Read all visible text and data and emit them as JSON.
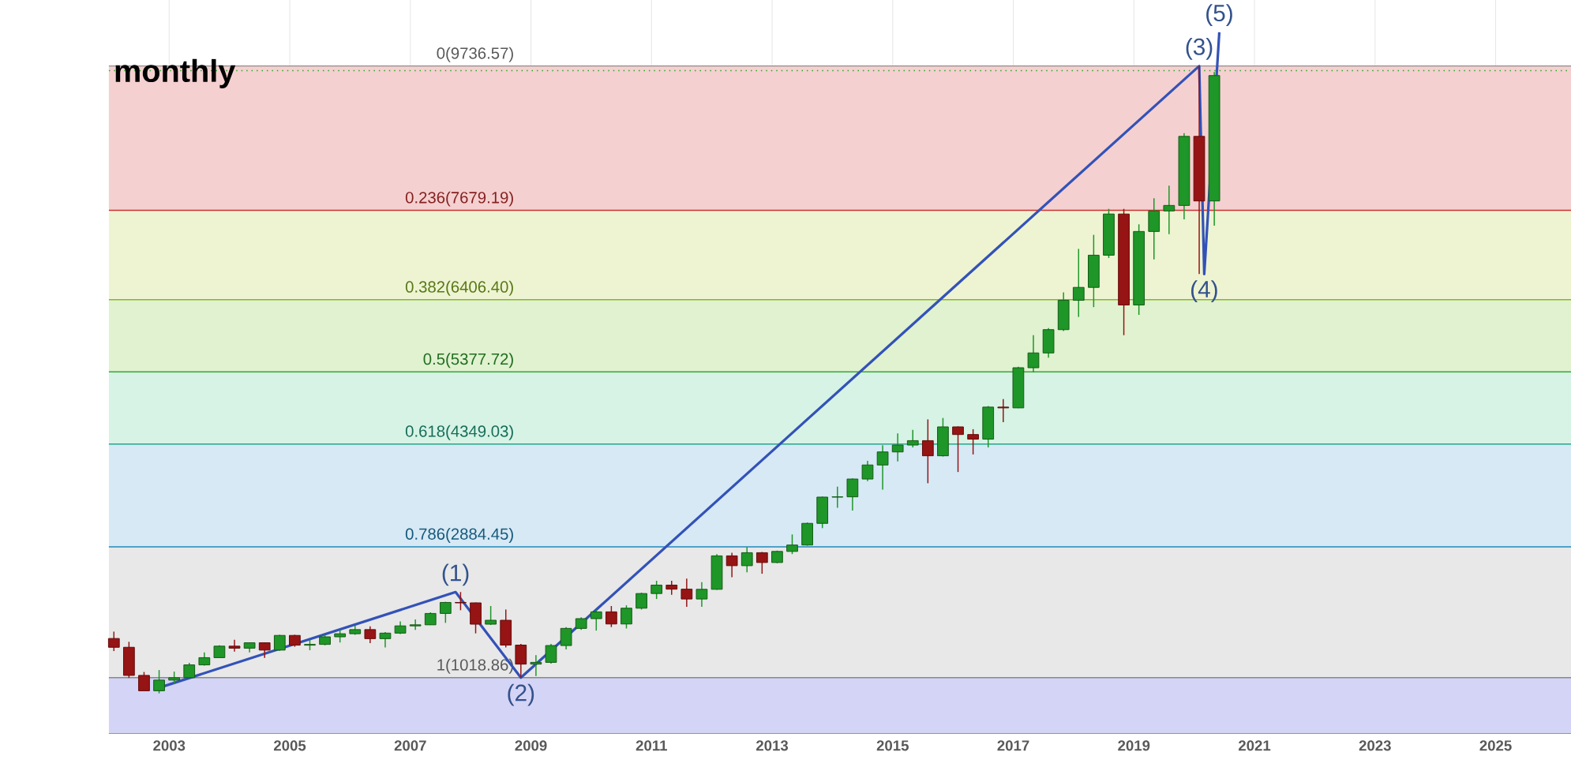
{
  "chart_data": {
    "type": "candlestick",
    "title": "monthly",
    "x": [
      "2002-02",
      "2002-05",
      "2002-08",
      "2002-11",
      "2003-02",
      "2003-05",
      "2003-08",
      "2003-11",
      "2004-02",
      "2004-05",
      "2004-08",
      "2004-11",
      "2005-02",
      "2005-05",
      "2005-08",
      "2005-11",
      "2006-02",
      "2006-05",
      "2006-08",
      "2006-11",
      "2007-02",
      "2007-05",
      "2007-08",
      "2007-11",
      "2008-02",
      "2008-05",
      "2008-08",
      "2008-11",
      "2009-02",
      "2009-05",
      "2009-08",
      "2009-11",
      "2010-02",
      "2010-05",
      "2010-08",
      "2010-11",
      "2011-02",
      "2011-05",
      "2011-08",
      "2011-11",
      "2012-02",
      "2012-05",
      "2012-08",
      "2012-11",
      "2013-02",
      "2013-05",
      "2013-08",
      "2013-11",
      "2014-02",
      "2014-05",
      "2014-08",
      "2014-11",
      "2015-02",
      "2015-05",
      "2015-08",
      "2015-11",
      "2016-02",
      "2016-05",
      "2016-08",
      "2016-11",
      "2017-02",
      "2017-05",
      "2017-08",
      "2017-11",
      "2018-02",
      "2018-05",
      "2018-08",
      "2018-11",
      "2019-02",
      "2019-05",
      "2019-08",
      "2019-11",
      "2020-02",
      "2020-05"
    ],
    "ohlc": [
      [
        1577,
        1675,
        1398,
        1452
      ],
      [
        1452,
        1530,
        1015,
        1051
      ],
      [
        1051,
        1100,
        832,
        832
      ],
      [
        832,
        1127,
        795,
        984
      ],
      [
        984,
        1105,
        930,
        1018
      ],
      [
        1018,
        1230,
        1010,
        1201
      ],
      [
        1201,
        1380,
        1190,
        1304
      ],
      [
        1304,
        1480,
        1300,
        1468
      ],
      [
        1468,
        1560,
        1390,
        1439
      ],
      [
        1439,
        1520,
        1380,
        1516
      ],
      [
        1516,
        1520,
        1300,
        1412
      ],
      [
        1412,
        1630,
        1400,
        1621
      ],
      [
        1621,
        1630,
        1460,
        1482
      ],
      [
        1482,
        1560,
        1410,
        1493
      ],
      [
        1493,
        1630,
        1480,
        1601
      ],
      [
        1601,
        1700,
        1520,
        1645
      ],
      [
        1645,
        1760,
        1630,
        1704
      ],
      [
        1704,
        1750,
        1510,
        1575
      ],
      [
        1575,
        1670,
        1450,
        1654
      ],
      [
        1654,
        1820,
        1640,
        1757
      ],
      [
        1757,
        1850,
        1700,
        1772
      ],
      [
        1772,
        1950,
        1770,
        1934
      ],
      [
        1934,
        2100,
        1800,
        2091
      ],
      [
        2091,
        2239,
        1980,
        2085
      ],
      [
        2085,
        2090,
        1650,
        1781
      ],
      [
        1781,
        2040,
        1770,
        1837
      ],
      [
        1837,
        1990,
        1450,
        1483
      ],
      [
        1483,
        1500,
        1018.86,
        1212
      ],
      [
        1212,
        1340,
        1043,
        1237
      ],
      [
        1237,
        1500,
        1220,
        1477
      ],
      [
        1477,
        1740,
        1420,
        1721
      ],
      [
        1721,
        1880,
        1700,
        1860
      ],
      [
        1860,
        1980,
        1690,
        1957
      ],
      [
        1957,
        2040,
        1740,
        1784
      ],
      [
        1784,
        2050,
        1720,
        2009
      ],
      [
        2009,
        2230,
        1990,
        2218
      ],
      [
        2218,
        2400,
        2140,
        2338
      ],
      [
        2338,
        2400,
        2200,
        2280
      ],
      [
        2280,
        2430,
        2030,
        2140
      ],
      [
        2140,
        2380,
        2030,
        2278
      ],
      [
        2278,
        2780,
        2270,
        2755
      ],
      [
        2755,
        2800,
        2450,
        2615
      ],
      [
        2615,
        2880,
        2520,
        2800
      ],
      [
        2800,
        2810,
        2500,
        2660
      ],
      [
        2660,
        2830,
        2650,
        2818
      ],
      [
        2818,
        3060,
        2780,
        2909
      ],
      [
        2909,
        3230,
        2900,
        3218
      ],
      [
        3218,
        3600,
        3150,
        3592
      ],
      [
        3592,
        3740,
        3440,
        3596
      ],
      [
        3596,
        3860,
        3400,
        3850
      ],
      [
        3850,
        4110,
        3820,
        4050
      ],
      [
        4050,
        4330,
        3700,
        4236
      ],
      [
        4236,
        4500,
        4100,
        4334
      ],
      [
        4334,
        4550,
        4300,
        4397
      ],
      [
        4397,
        4700,
        3790,
        4181
      ],
      [
        4181,
        4720,
        4170,
        4593
      ],
      [
        4593,
        4600,
        3950,
        4484
      ],
      [
        4484,
        4560,
        4200,
        4418
      ],
      [
        4418,
        4890,
        4300,
        4875
      ],
      [
        4875,
        4990,
        4660,
        4864
      ],
      [
        4864,
        5450,
        4860,
        5436
      ],
      [
        5436,
        5900,
        5370,
        5647
      ],
      [
        5647,
        6000,
        5580,
        5979
      ],
      [
        5979,
        6510,
        5960,
        6397
      ],
      [
        6397,
        7130,
        6160,
        6581
      ],
      [
        6581,
        7330,
        6300,
        7040
      ],
      [
        7040,
        7700,
        7000,
        7627
      ],
      [
        7627,
        7700,
        5900,
        6330
      ],
      [
        6330,
        7480,
        6190,
        7378
      ],
      [
        7378,
        7850,
        6980,
        7671
      ],
      [
        7671,
        8030,
        7340,
        7749
      ],
      [
        7749,
        8780,
        7550,
        8733
      ],
      [
        8733,
        9736.57,
        6771,
        7813
      ],
      [
        7813,
        9650,
        7460,
        9600
      ]
    ],
    "series": [
      {
        "type": "line",
        "color": "#3352b8",
        "x": [
          "2002-10",
          "2007-10",
          "2008-11",
          "2020-02",
          "2020-03",
          "2020-06"
        ],
        "values": [
          852,
          2239,
          1018.86,
          9736.57,
          6771,
          10217
        ]
      }
    ],
    "xlim": [
      "2002-01",
      "2026-04"
    ],
    "ylim": [
      224,
      10677
    ],
    "xticks": [
      "2003",
      "2005",
      "2007",
      "2009",
      "2011",
      "2013",
      "2015",
      "2017",
      "2019",
      "2021",
      "2023",
      "2025"
    ],
    "tick_labels": "x",
    "grid": "x",
    "ref_lines": [
      {
        "axis": "y",
        "value": 9736.57,
        "label": "0(9736.57)",
        "color": "#888888"
      },
      {
        "axis": "y",
        "value": 7679.19,
        "label": "0.236(7679.19)",
        "color": "#cc3333"
      },
      {
        "axis": "y",
        "value": 6406.4,
        "label": "0.382(6406.40)",
        "color": "#88b822"
      },
      {
        "axis": "y",
        "value": 5377.72,
        "label": "0.5(5377.72)",
        "color": "#33aa33"
      },
      {
        "axis": "y",
        "value": 4349.03,
        "label": "0.618(4349.03)",
        "color": "#22a888"
      },
      {
        "axis": "y",
        "value": 2884.45,
        "label": "0.786(2884.45)",
        "color": "#2288bb"
      },
      {
        "axis": "y",
        "value": 1018.86,
        "label": "1(1018.86)",
        "color": "#888888"
      },
      {
        "axis": "y",
        "value": 9670,
        "color": "#22aa22",
        "line_style": "dotted"
      }
    ],
    "bands": [
      {
        "axis": "y",
        "from": 7679.19,
        "to": 9736.57,
        "color": "#f5d0d0"
      },
      {
        "axis": "y",
        "from": 6406.4,
        "to": 7679.19,
        "color": "#eef4d2"
      },
      {
        "axis": "y",
        "from": 5377.72,
        "to": 6406.4,
        "color": "#e0f2cf"
      },
      {
        "axis": "y",
        "from": 4349.03,
        "to": 5377.72,
        "color": "#d6f3e6"
      },
      {
        "axis": "y",
        "from": 2884.45,
        "to": 4349.03,
        "color": "#d6e9f5"
      },
      {
        "axis": "y",
        "from": 1018.86,
        "to": 2884.45,
        "color": "#e8e8e8"
      },
      {
        "axis": "y",
        "from": 224,
        "to": 1018.86,
        "color": "#d4d4f6"
      }
    ],
    "annotations": [
      {
        "text": "(1)",
        "x": "2007-10",
        "y": 2239
      },
      {
        "text": "(2)",
        "x": "2008-11",
        "y": 1018.86
      },
      {
        "text": "(3)",
        "x": "2020-02",
        "y": 9736.57
      },
      {
        "text": "(4)",
        "x": "2020-03",
        "y": 6771
      },
      {
        "text": "(5)",
        "x": "2020-06",
        "y": 10217
      }
    ]
  }
}
